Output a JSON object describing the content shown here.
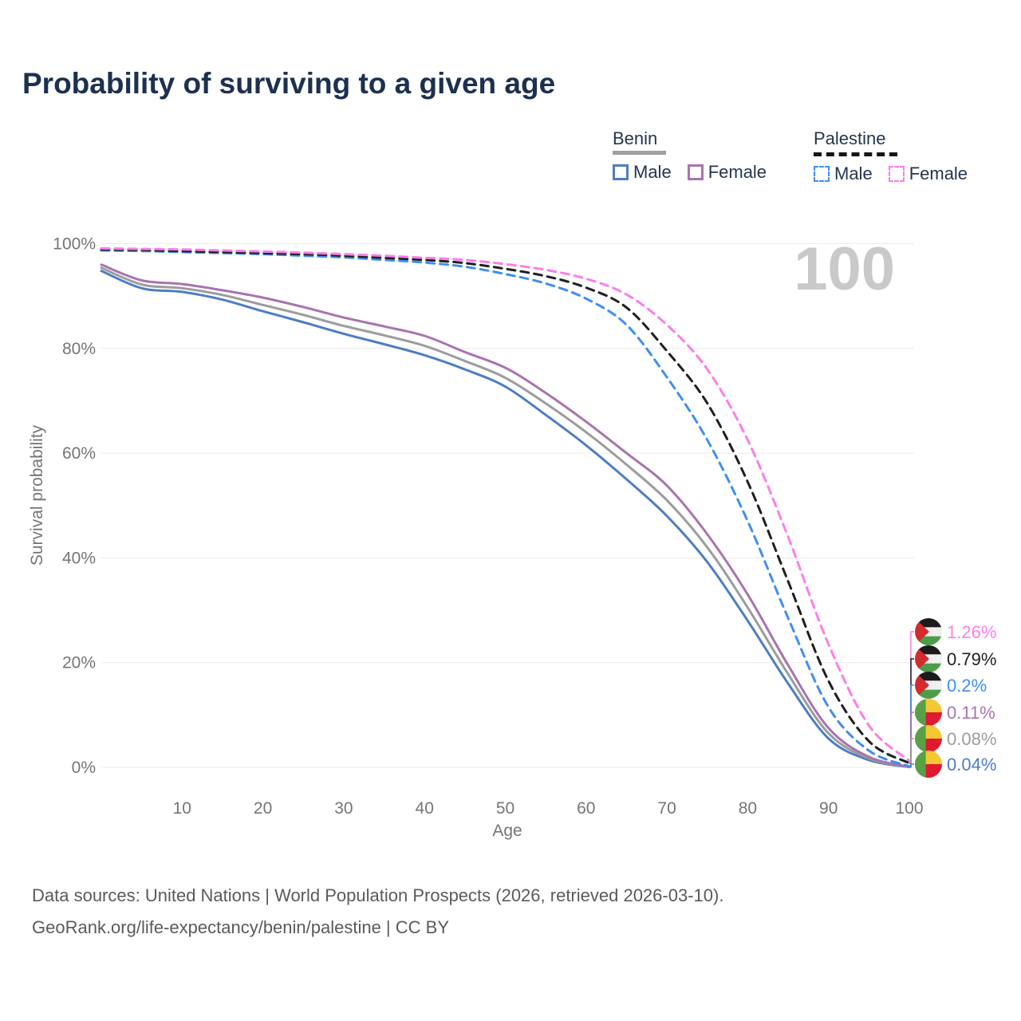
{
  "title": "Probability of surviving to a given age",
  "watermark": "100",
  "legend": {
    "benin": {
      "title": "Benin",
      "male": "Male",
      "female": "Female"
    },
    "palestine": {
      "title": "Palestine",
      "male": "Male",
      "female": "Female"
    }
  },
  "colors": {
    "title": "#1c3050",
    "axis": "#757575",
    "grid": "#ececec",
    "watermark": "#c9c9c9",
    "footer": "#5a5a5a",
    "benin_male": "#4d7dc4",
    "benin_both": "#9c9c9c",
    "benin_female": "#a873ae",
    "palestine_male": "#3f8ef2",
    "palestine_both": "#1f1f1f",
    "palestine_female": "#fb7deb"
  },
  "flag_colors": {
    "palestine": {
      "black": "#1b1b1b",
      "white": "#f0f0f0",
      "green": "#4e9c49",
      "red": "#d32b2e"
    },
    "benin": {
      "green": "#57a046",
      "yellow": "#f5c732",
      "red": "#e01931"
    }
  },
  "chart_data": {
    "type": "line",
    "title": "Probability of surviving to a given age",
    "xlabel": "Age",
    "ylabel": "Survival probability",
    "xlim": [
      0,
      100
    ],
    "ylim": [
      0,
      100
    ],
    "grid": "horizontal",
    "legend_position": "top-right",
    "x_ticks": [
      10,
      20,
      30,
      40,
      50,
      60,
      70,
      80,
      90,
      100
    ],
    "y_ticks": [
      0,
      20,
      40,
      60,
      80,
      100
    ],
    "y_tick_suffix": "%",
    "x": [
      0,
      5,
      10,
      15,
      20,
      25,
      30,
      35,
      40,
      45,
      50,
      55,
      60,
      65,
      70,
      75,
      80,
      85,
      90,
      95,
      100
    ],
    "series": [
      {
        "id": "benin-male",
        "name": "Benin Male",
        "color": "#4d7dc4",
        "dashed": false,
        "end_label": "0.04%",
        "flag": "benin",
        "values": [
          94.8,
          91.5,
          90.8,
          89.3,
          87.1,
          85.0,
          82.8,
          80.8,
          78.7,
          76.0,
          72.7,
          67.3,
          61.5,
          55.0,
          48.0,
          39.2,
          28.0,
          16.0,
          5.5,
          1.4,
          0.04
        ]
      },
      {
        "id": "benin-both",
        "name": "Benin (both sexes)",
        "color": "#9c9c9c",
        "dashed": false,
        "end_label": "0.08%",
        "flag": "benin",
        "values": [
          95.4,
          92.2,
          91.5,
          90.2,
          88.3,
          86.4,
          84.3,
          82.5,
          80.5,
          77.6,
          74.4,
          69.5,
          64.0,
          57.8,
          51.0,
          42.0,
          30.5,
          17.8,
          6.5,
          1.7,
          0.08
        ]
      },
      {
        "id": "benin-female",
        "name": "Benin Female",
        "color": "#a873ae",
        "dashed": false,
        "end_label": "0.11%",
        "flag": "benin",
        "values": [
          96.0,
          93.0,
          92.3,
          91.1,
          89.7,
          87.9,
          85.9,
          84.2,
          82.4,
          79.3,
          76.3,
          71.5,
          66.0,
          60.0,
          53.8,
          44.5,
          33.0,
          19.5,
          7.5,
          2.0,
          0.11
        ]
      },
      {
        "id": "palestine-male",
        "name": "Palestine Male",
        "color": "#3f8ef2",
        "dashed": true,
        "end_label": "0.2%",
        "flag": "palestine",
        "values": [
          98.7,
          98.6,
          98.4,
          98.2,
          98.0,
          97.7,
          97.4,
          96.9,
          96.4,
          95.6,
          94.2,
          92.4,
          89.5,
          84.5,
          74.5,
          62.5,
          47.0,
          28.5,
          11.5,
          3.2,
          0.2
        ]
      },
      {
        "id": "palestine-both",
        "name": "Palestine (both sexes)",
        "color": "#1f1f1f",
        "dashed": true,
        "end_label": "0.79%",
        "flag": "palestine",
        "values": [
          98.9,
          98.8,
          98.6,
          98.4,
          98.2,
          98.0,
          97.7,
          97.3,
          96.9,
          96.3,
          95.2,
          93.8,
          91.6,
          87.8,
          79.5,
          69.5,
          54.5,
          35.5,
          16.5,
          5.0,
          0.79
        ]
      },
      {
        "id": "palestine-female",
        "name": "Palestine Female",
        "color": "#fb7deb",
        "dashed": true,
        "end_label": "1.26%",
        "flag": "palestine",
        "values": [
          99.1,
          99.0,
          98.9,
          98.7,
          98.5,
          98.3,
          98.0,
          97.7,
          97.3,
          96.9,
          96.1,
          95.0,
          93.3,
          90.3,
          84.5,
          76.0,
          62.5,
          44.0,
          23.5,
          8.0,
          1.26
        ]
      }
    ],
    "end_labels": [
      {
        "series": "palestine-female",
        "value": "1.26%",
        "flag": "palestine"
      },
      {
        "series": "palestine-both",
        "value": "0.79%",
        "flag": "palestine"
      },
      {
        "series": "palestine-male",
        "value": "0.2%",
        "flag": "palestine"
      },
      {
        "series": "benin-female",
        "value": "0.11%",
        "flag": "benin"
      },
      {
        "series": "benin-both",
        "value": "0.08%",
        "flag": "benin"
      },
      {
        "series": "benin-male",
        "value": "0.04%",
        "flag": "benin"
      }
    ]
  },
  "footer": {
    "line1": "Data sources: United Nations | World Population Prospects (2026, retrieved 2026-03-10).",
    "line2": "GeoRank.org/life-expectancy/benin/palestine | CC BY"
  }
}
